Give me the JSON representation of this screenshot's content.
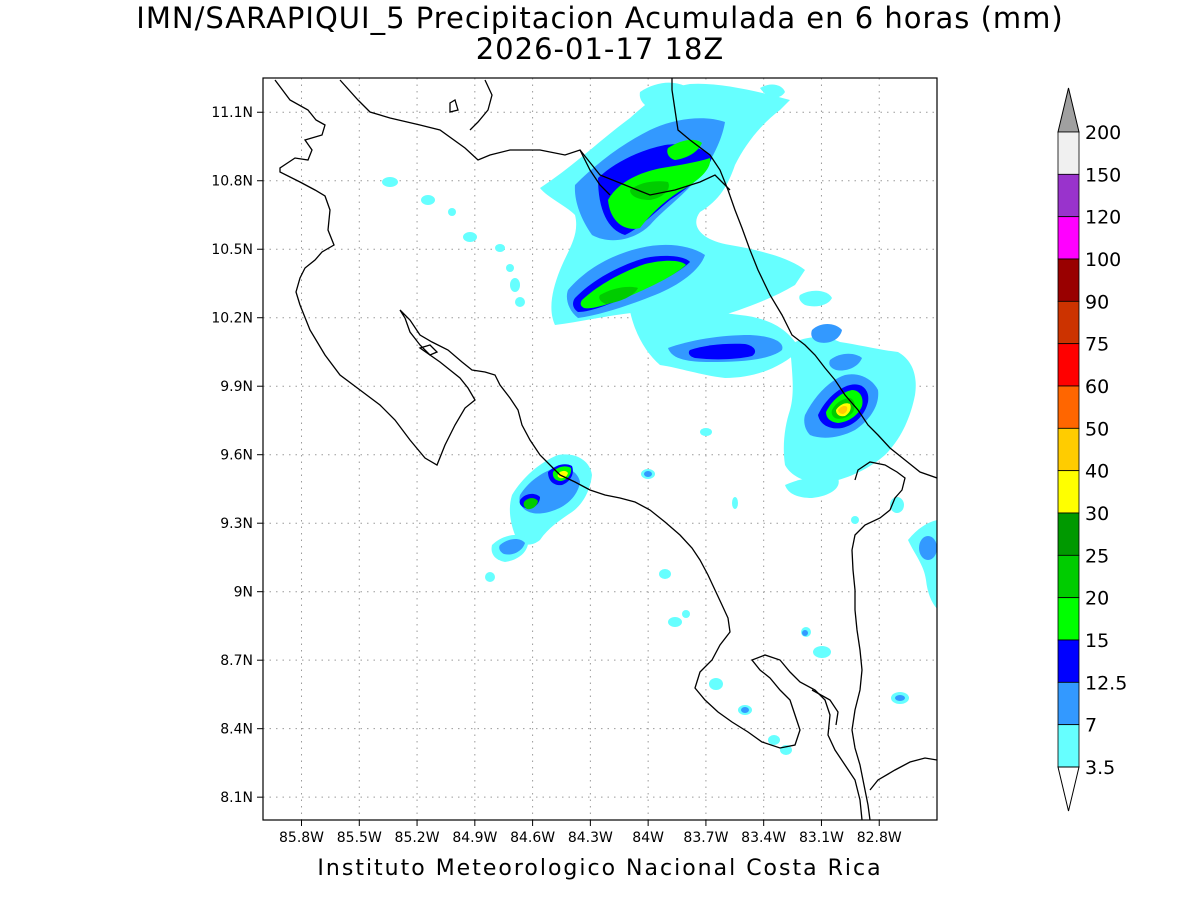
{
  "header": {
    "title_line1": "IMN/SARAPIQUI_5 Precipitacion Acumulada en 6 horas (mm)",
    "title_line2": "2026-01-17 18Z"
  },
  "footer": {
    "credit": "Instituto Meteorologico Nacional Costa Rica"
  },
  "map": {
    "lon_range": [
      -86.0,
      -82.5
    ],
    "lat_range": [
      8.0,
      11.25
    ],
    "lat_ticks": [
      "11.1N",
      "10.8N",
      "10.5N",
      "10.2N",
      "9.9N",
      "9.6N",
      "9.3N",
      "9N",
      "8.7N",
      "8.4N",
      "8.1N"
    ],
    "lon_ticks": [
      "85.8W",
      "85.5W",
      "85.2W",
      "84.9W",
      "84.6W",
      "84.3W",
      "84W",
      "83.7W",
      "83.4W",
      "83.1W",
      "82.8W"
    ]
  },
  "colorbar": {
    "levels": [
      "200",
      "150",
      "120",
      "100",
      "90",
      "75",
      "60",
      "50",
      "40",
      "30",
      "25",
      "20",
      "15",
      "12.5",
      "7",
      "3.5"
    ],
    "colors": [
      "#f0f0f0",
      "#9933cc",
      "#ff00ff",
      "#990000",
      "#cc3300",
      "#ff0000",
      "#ff6600",
      "#ffcc00",
      "#ffff00",
      "#009900",
      "#00cc00",
      "#00ff00",
      "#0000ff",
      "#3399ff",
      "#66ffff"
    ],
    "over_color": "#a0a0a0",
    "under_color": "#ffffff"
  },
  "precip_colors": {
    "c3_5": "#66ffff",
    "c7": "#3399ff",
    "c12_5": "#0000ff",
    "c15": "#00ff00",
    "c20": "#00cc00",
    "c25": "#009900",
    "c30": "#ffff00",
    "c40": "#ffcc00"
  }
}
